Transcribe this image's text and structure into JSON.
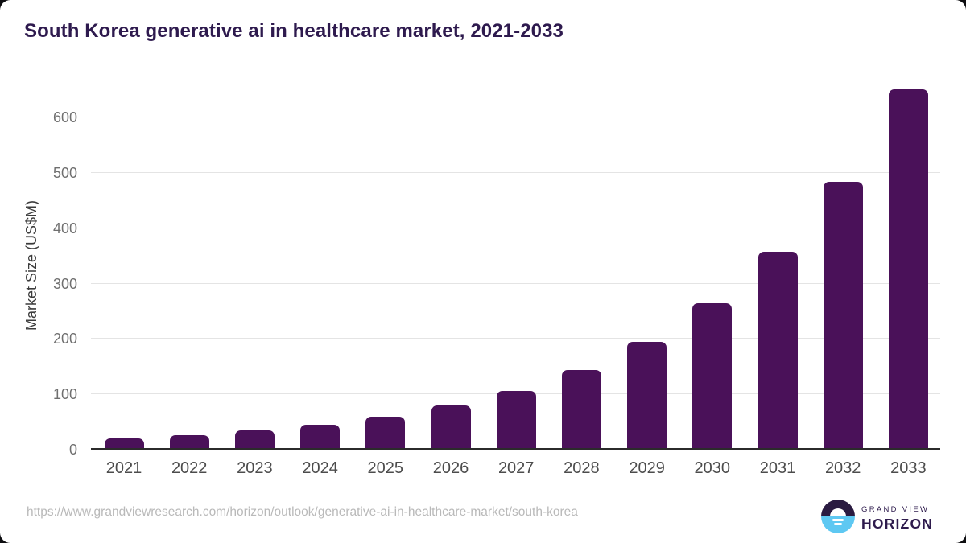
{
  "page": {
    "title": "South Korea generative ai in healthcare market, 2021-2033",
    "source_url": "https://www.grandviewresearch.com/horizon/outlook/generative-ai-in-healthcare-market/south-korea"
  },
  "branding": {
    "company": "GRAND VIEW",
    "product": "HORIZON"
  },
  "colors": {
    "bar": "#4a1159",
    "title": "#2e1a4e",
    "axis-line": "#2b2b2b",
    "gridline": "#e4e4e4",
    "ytick": "#6f6f6f",
    "xtick": "#4c4c4c",
    "ylabel": "#3c3c3c",
    "url": "#b9b9b9",
    "logo-dark": "#2a1b41",
    "logo-blue": "#5ec8f2",
    "logo-text": "#2e1b4d"
  },
  "chart_data": {
    "type": "bar",
    "title": "South Korea generative ai in healthcare market, 2021-2033",
    "categories": [
      "2021",
      "2022",
      "2023",
      "2024",
      "2025",
      "2026",
      "2027",
      "2028",
      "2029",
      "2030",
      "2031",
      "2032",
      "2033"
    ],
    "values": [
      18.9,
      25.0,
      33.2,
      44.1,
      58.4,
      79.0,
      104.2,
      142.5,
      193.6,
      263.0,
      356.9,
      482.0,
      649.3
    ],
    "xlabel": "",
    "ylabel": "Market Size (US$M)",
    "yticks": [
      0,
      100,
      200,
      300,
      400,
      500,
      600
    ],
    "ylim": [
      0,
      665
    ],
    "grid": "horizontal",
    "legend": "none",
    "bar_color": "#4a1159"
  }
}
